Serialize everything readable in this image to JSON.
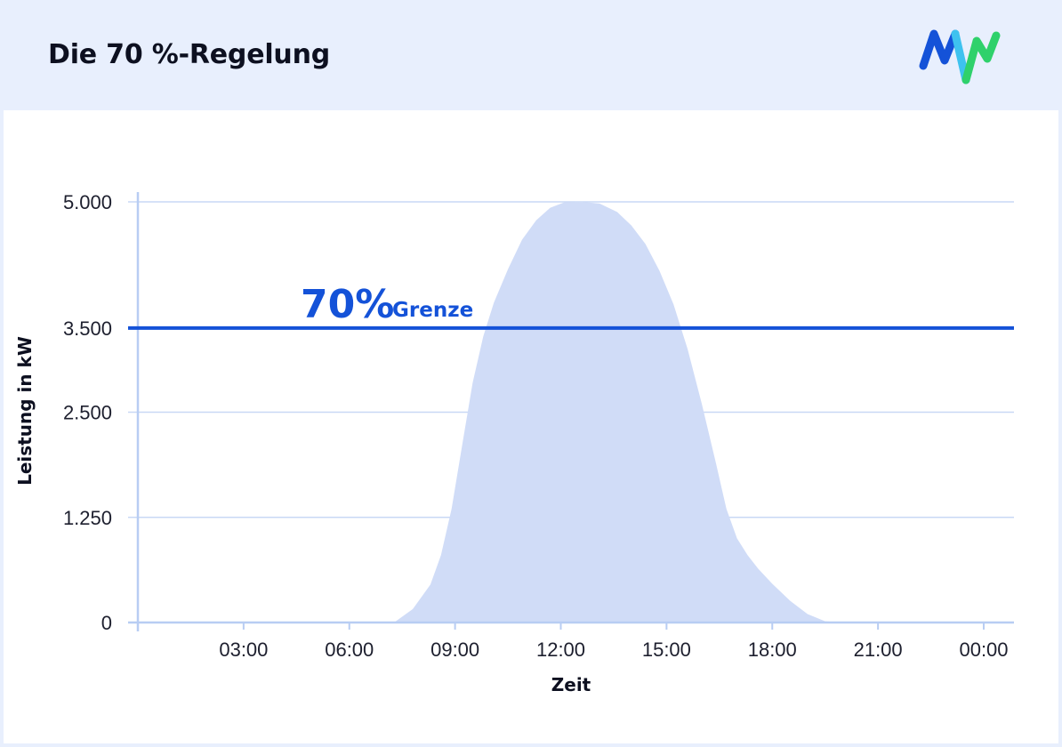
{
  "header": {
    "title": "Die 70 %-Regelung"
  },
  "colors": {
    "background": "#e8effd",
    "area_fill": "#d0dcf7",
    "limit_line": "#1452d8",
    "grid": "#c9d8f5",
    "axis": "#b8cdf3",
    "logo_blue": "#1452d8",
    "logo_cyan": "#3ec2ef",
    "logo_green": "#2fd16b"
  },
  "chart_data": {
    "type": "area",
    "xlabel": "Zeit",
    "ylabel": "Leistung in kW",
    "ylim": [
      0,
      5000
    ],
    "xlim": [
      0,
      24
    ],
    "yticks": [
      {
        "value": 0,
        "label": "0"
      },
      {
        "value": 1250,
        "label": "1.250"
      },
      {
        "value": 2500,
        "label": "2.500"
      },
      {
        "value": 3500,
        "label": "3.500"
      },
      {
        "value": 5000,
        "label": "5.000"
      }
    ],
    "xticks": [
      {
        "value": 3,
        "label": "03:00"
      },
      {
        "value": 6,
        "label": "06:00"
      },
      {
        "value": 9,
        "label": "09:00"
      },
      {
        "value": 12,
        "label": "12:00"
      },
      {
        "value": 15,
        "label": "15:00"
      },
      {
        "value": 18,
        "label": "18:00"
      },
      {
        "value": 21,
        "label": "21:00"
      },
      {
        "value": 24,
        "label": "00:00"
      }
    ],
    "grid": true,
    "series": [
      {
        "x": [
          0,
          7.0,
          7.3,
          7.8,
          8.3,
          8.6,
          8.9,
          9.2,
          9.5,
          9.8,
          10.1,
          10.5,
          10.9,
          11.3,
          11.7,
          12.1,
          12.6,
          13.1,
          13.6,
          14.0,
          14.4,
          14.8,
          15.2,
          15.6,
          16.0,
          16.4,
          16.7,
          17.0,
          17.3,
          17.6,
          18.0,
          18.5,
          19.0,
          19.5,
          20.0,
          24
        ],
        "y": [
          0,
          0,
          10,
          160,
          450,
          800,
          1350,
          2100,
          2850,
          3400,
          3800,
          4200,
          4550,
          4780,
          4930,
          4995,
          5000,
          4980,
          4880,
          4720,
          4500,
          4180,
          3780,
          3250,
          2600,
          1900,
          1350,
          1000,
          800,
          640,
          460,
          260,
          100,
          15,
          0,
          0
        ]
      }
    ],
    "limit": {
      "value": 3500,
      "label_big": "70%",
      "label_small": "Grenze"
    }
  }
}
